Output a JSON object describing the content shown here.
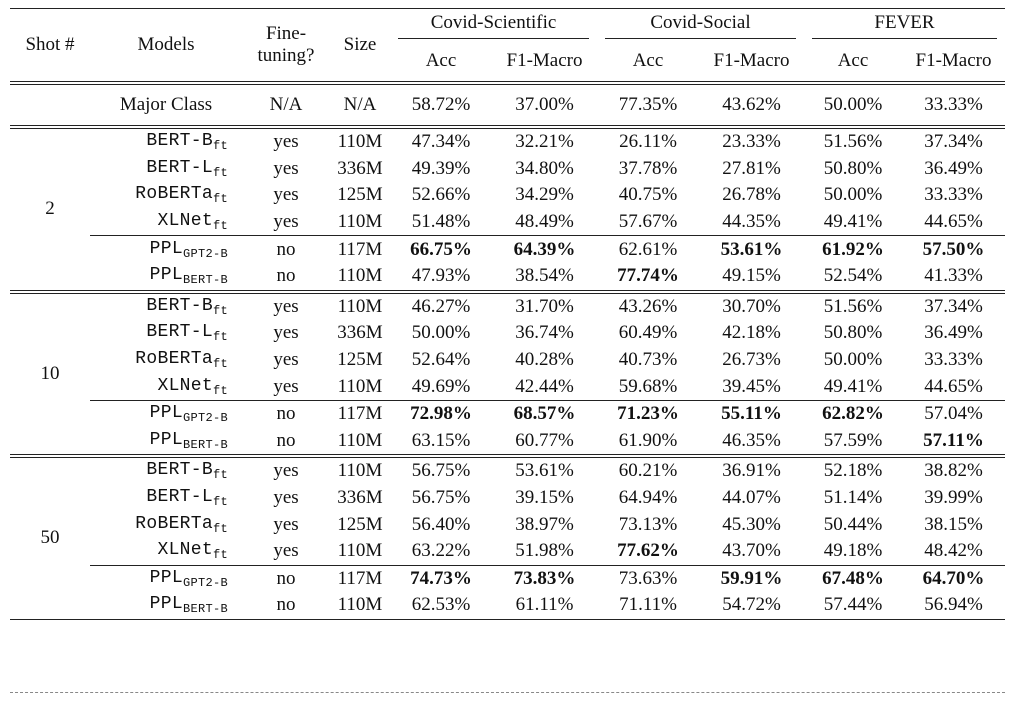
{
  "header": {
    "shot": "Shot #",
    "models": "Models",
    "finetune": [
      "Fine-",
      "tuning?"
    ],
    "size": "Size",
    "groups": [
      "Covid-Scientific",
      "Covid-Social",
      "FEVER"
    ],
    "metrics": [
      "Acc",
      "F1-Macro",
      "Acc",
      "F1-Macro",
      "Acc",
      "F1-Macro"
    ]
  },
  "major": {
    "model": "Major Class",
    "finetune": "N/A",
    "size": "N/A",
    "values": [
      "58.72%",
      "37.00%",
      "77.35%",
      "43.62%",
      "50.00%",
      "33.33%"
    ]
  },
  "blocks": [
    {
      "shot": "2",
      "ft_rows": [
        {
          "base": "BERT-B",
          "sub": "ft",
          "ft": "yes",
          "size": "110M",
          "values": [
            "47.34%",
            "32.21%",
            "26.11%",
            "23.33%",
            "51.56%",
            "37.34%"
          ],
          "bold": []
        },
        {
          "base": "BERT-L",
          "sub": "ft",
          "ft": "yes",
          "size": "336M",
          "values": [
            "49.39%",
            "34.80%",
            "37.78%",
            "27.81%",
            "50.80%",
            "36.49%"
          ],
          "bold": []
        },
        {
          "base": "RoBERTa",
          "sub": "ft",
          "ft": "yes",
          "size": "125M",
          "values": [
            "52.66%",
            "34.29%",
            "40.75%",
            "26.78%",
            "50.00%",
            "33.33%"
          ],
          "bold": []
        },
        {
          "base": "XLNet",
          "sub": "ft",
          "ft": "yes",
          "size": "110M",
          "values": [
            "51.48%",
            "48.49%",
            "57.67%",
            "44.35%",
            "49.41%",
            "44.65%"
          ],
          "bold": []
        }
      ],
      "ppl_rows": [
        {
          "base": "PPL",
          "sub": "GPT2-B",
          "ft": "no",
          "size": "117M",
          "values": [
            "66.75%",
            "64.39%",
            "62.61%",
            "53.61%",
            "61.92%",
            "57.50%"
          ],
          "bold": [
            0,
            1,
            3,
            4,
            5
          ]
        },
        {
          "base": "PPL",
          "sub": "BERT-B",
          "ft": "no",
          "size": "110M",
          "values": [
            "47.93%",
            "38.54%",
            "77.74%",
            "49.15%",
            "52.54%",
            "41.33%"
          ],
          "bold": [
            2
          ]
        }
      ]
    },
    {
      "shot": "10",
      "ft_rows": [
        {
          "base": "BERT-B",
          "sub": "ft",
          "ft": "yes",
          "size": "110M",
          "values": [
            "46.27%",
            "31.70%",
            "43.26%",
            "30.70%",
            "51.56%",
            "37.34%"
          ],
          "bold": []
        },
        {
          "base": "BERT-L",
          "sub": "ft",
          "ft": "yes",
          "size": "336M",
          "values": [
            "50.00%",
            "36.74%",
            "60.49%",
            "42.18%",
            "50.80%",
            "36.49%"
          ],
          "bold": []
        },
        {
          "base": "RoBERTa",
          "sub": "ft",
          "ft": "yes",
          "size": "125M",
          "values": [
            "52.64%",
            "40.28%",
            "40.73%",
            "26.73%",
            "50.00%",
            "33.33%"
          ],
          "bold": []
        },
        {
          "base": "XLNet",
          "sub": "ft",
          "ft": "yes",
          "size": "110M",
          "values": [
            "49.69%",
            "42.44%",
            "59.68%",
            "39.45%",
            "49.41%",
            "44.65%"
          ],
          "bold": []
        }
      ],
      "ppl_rows": [
        {
          "base": "PPL",
          "sub": "GPT2-B",
          "ft": "no",
          "size": "117M",
          "values": [
            "72.98%",
            "68.57%",
            "71.23%",
            "55.11%",
            "62.82%",
            "57.04%"
          ],
          "bold": [
            0,
            1,
            2,
            3,
            4
          ]
        },
        {
          "base": "PPL",
          "sub": "BERT-B",
          "ft": "no",
          "size": "110M",
          "values": [
            "63.15%",
            "60.77%",
            "61.90%",
            "46.35%",
            "57.59%",
            "57.11%"
          ],
          "bold": [
            5
          ]
        }
      ]
    },
    {
      "shot": "50",
      "ft_rows": [
        {
          "base": "BERT-B",
          "sub": "ft",
          "ft": "yes",
          "size": "110M",
          "values": [
            "56.75%",
            "53.61%",
            "60.21%",
            "36.91%",
            "52.18%",
            "38.82%"
          ],
          "bold": []
        },
        {
          "base": "BERT-L",
          "sub": "ft",
          "ft": "yes",
          "size": "336M",
          "values": [
            "56.75%",
            "39.15%",
            "64.94%",
            "44.07%",
            "51.14%",
            "39.99%"
          ],
          "bold": []
        },
        {
          "base": "RoBERTa",
          "sub": "ft",
          "ft": "yes",
          "size": "125M",
          "values": [
            "56.40%",
            "38.97%",
            "73.13%",
            "45.30%",
            "50.44%",
            "38.15%"
          ],
          "bold": []
        },
        {
          "base": "XLNet",
          "sub": "ft",
          "ft": "yes",
          "size": "110M",
          "values": [
            "63.22%",
            "51.98%",
            "77.62%",
            "43.70%",
            "49.18%",
            "48.42%"
          ],
          "bold": [
            2
          ]
        }
      ],
      "ppl_rows": [
        {
          "base": "PPL",
          "sub": "GPT2-B",
          "ft": "no",
          "size": "117M",
          "values": [
            "74.73%",
            "73.83%",
            "73.63%",
            "59.91%",
            "67.48%",
            "64.70%"
          ],
          "bold": [
            0,
            1,
            3,
            4,
            5
          ]
        },
        {
          "base": "PPL",
          "sub": "BERT-B",
          "ft": "no",
          "size": "110M",
          "values": [
            "62.53%",
            "61.11%",
            "71.11%",
            "54.72%",
            "57.44%",
            "56.94%"
          ],
          "bold": []
        }
      ]
    }
  ]
}
